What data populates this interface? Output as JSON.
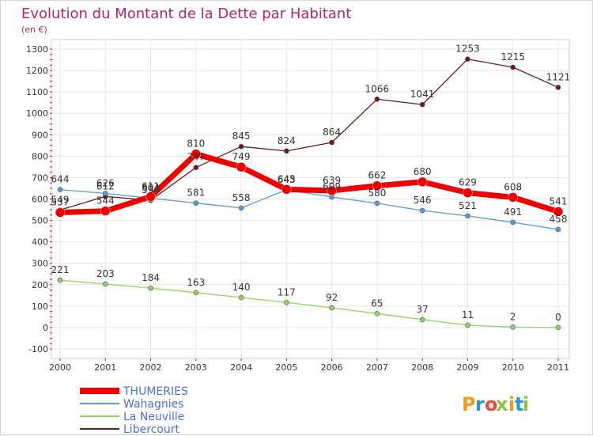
{
  "chart_data": {
    "type": "line",
    "title": "Evolution du Montant de la Dette par Habitant",
    "subtitle": "(en €)",
    "categories": [
      "2000",
      "2001",
      "2002",
      "2003",
      "2004",
      "2005",
      "2006",
      "2007",
      "2008",
      "2009",
      "2010",
      "2011"
    ],
    "ylim": [
      -100,
      1300
    ],
    "yticks": [
      -100,
      0,
      100,
      200,
      300,
      400,
      500,
      600,
      700,
      800,
      900,
      1000,
      1100,
      1200,
      1300
    ],
    "series": [
      {
        "name": "Libercourt",
        "color": "#6b1a1a",
        "values": [
          549,
          612,
          594,
          747,
          845,
          824,
          864,
          1066,
          1041,
          1253,
          1215,
          1121
        ],
        "labels": [
          "549",
          "612",
          "594",
          "747",
          "845",
          "824",
          "864",
          "1066",
          "1041",
          "1253",
          "1215",
          "1121"
        ]
      },
      {
        "name": "Wahagnies",
        "color": "#5b9bd5",
        "values": [
          644,
          626,
          604,
          581,
          558,
          643,
          609,
          580,
          546,
          521,
          491,
          458
        ],
        "labels": [
          "644",
          "626",
          "604",
          "581",
          "558",
          "643",
          "609",
          "580",
          "546",
          "521",
          "491",
          "458"
        ]
      },
      {
        "name": "La Neuville",
        "color": "#8fd45c",
        "values": [
          221,
          203,
          184,
          163,
          140,
          117,
          92,
          65,
          37,
          11,
          2,
          0
        ],
        "labels": [
          "221",
          "203",
          "184",
          "163",
          "140",
          "117",
          "92",
          "65",
          "37",
          "11",
          "2",
          "0"
        ]
      },
      {
        "name": "THUMERIES",
        "color": "#ee0000",
        "values": [
          537,
          544,
          611,
          810,
          749,
          645,
          639,
          662,
          680,
          629,
          608,
          541
        ],
        "labels": [
          "537",
          "544",
          "611",
          "810",
          "749",
          "645",
          "639",
          "662",
          "680",
          "629",
          "608",
          "541"
        ]
      }
    ],
    "legend": [
      "THUMERIES",
      "Wahagnies",
      "La Neuville",
      "Libercourt"
    ],
    "legend_position": "bottom-left"
  },
  "brand": {
    "name": "Proxiti",
    "letters": [
      "P",
      "r",
      "o",
      "x",
      "i",
      "t",
      "i"
    ],
    "colors": [
      "#f39c12",
      "#1f9bd7",
      "#e74c3c",
      "#8bc34a",
      "#f39c12",
      "#1f9bd7",
      "#8bc34a"
    ]
  }
}
